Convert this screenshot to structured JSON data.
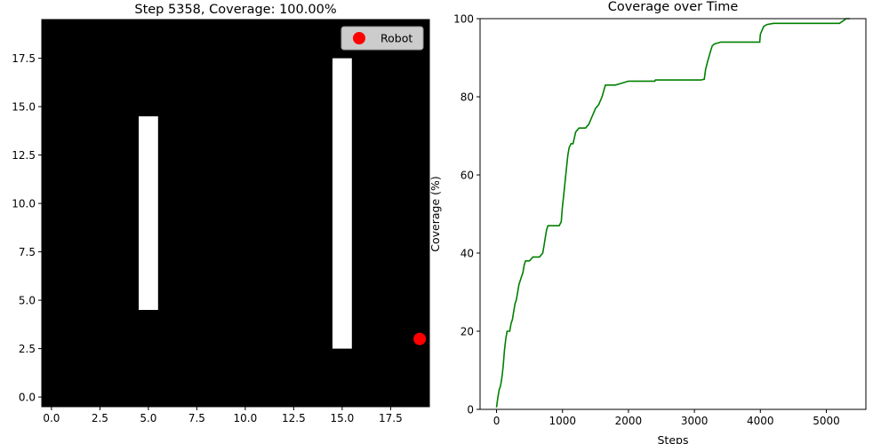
{
  "chart_data": [
    {
      "type": "heatmap",
      "title": "Step 5358, Coverage: 100.00%",
      "xlim": [
        -0.5,
        19.5
      ],
      "ylim": [
        -0.5,
        19.5
      ],
      "xticks": [
        0.0,
        2.5,
        5.0,
        7.5,
        10.0,
        12.5,
        15.0,
        17.5
      ],
      "yticks": [
        0.0,
        2.5,
        5.0,
        7.5,
        10.0,
        12.5,
        15.0,
        17.5
      ],
      "xtick_labels": [
        "0.0",
        "2.5",
        "5.0",
        "7.5",
        "10.0",
        "12.5",
        "15.0",
        "17.5"
      ],
      "ytick_labels": [
        "0.0",
        "2.5",
        "5.0",
        "7.5",
        "10.0",
        "12.5",
        "15.0",
        "17.5"
      ],
      "background_color": "#000000",
      "obstacle_color": "#ffffff",
      "obstacles": [
        {
          "x_range": [
            4.5,
            5.5
          ],
          "y_range": [
            4.5,
            14.5
          ]
        },
        {
          "x_range": [
            14.5,
            15.5
          ],
          "y_range": [
            2.5,
            17.5
          ]
        }
      ],
      "robot": {
        "x": 19,
        "y": 3,
        "color": "#ff0000"
      },
      "legend": {
        "label": "Robot",
        "placement": "top-right"
      }
    },
    {
      "type": "line",
      "title": "Coverage over Time",
      "xlabel": "Steps",
      "ylabel": "Coverage (%)",
      "xlim": [
        -250,
        5600
      ],
      "ylim": [
        0,
        100
      ],
      "xticks": [
        0,
        1000,
        2000,
        3000,
        4000,
        5000
      ],
      "yticks": [
        0,
        20,
        40,
        60,
        80,
        100
      ],
      "xtick_labels": [
        "0",
        "1000",
        "2000",
        "3000",
        "4000",
        "5000"
      ],
      "ytick_labels": [
        "0",
        "20",
        "40",
        "60",
        "80",
        "100"
      ],
      "line_color": "#008000",
      "series": [
        {
          "x": [
            0,
            20,
            40,
            60,
            80,
            100,
            120,
            140,
            160,
            180,
            200,
            220,
            240,
            260,
            280,
            300,
            320,
            340,
            360,
            380,
            400,
            420,
            440,
            460,
            480,
            500,
            550,
            600,
            650,
            700,
            720,
            740,
            760,
            780,
            800,
            850,
            900,
            950,
            980,
            1000,
            1020,
            1050,
            1080,
            1100,
            1130,
            1160,
            1200,
            1250,
            1300,
            1350,
            1400,
            1450,
            1500,
            1550,
            1600,
            1650,
            1680,
            1700,
            1750,
            1800,
            1900,
            2000,
            2050,
            2100,
            2200,
            2300,
            2400,
            2410,
            2500,
            2600,
            2800,
            3000,
            3100,
            3150,
            3170,
            3200,
            3250,
            3270,
            3300,
            3400,
            3500,
            3600,
            3700,
            3800,
            3900,
            3990,
            4000,
            4050,
            4100,
            4200,
            4400,
            4600,
            4800,
            5000,
            5200,
            5260,
            5300,
            5358
          ],
          "values": [
            0.5,
            3,
            5,
            6,
            8,
            11,
            15,
            18,
            20,
            20,
            20,
            22,
            23,
            25,
            27,
            28,
            30,
            32,
            33,
            34,
            35,
            37,
            38,
            38,
            38,
            38,
            39,
            39,
            39,
            40,
            42,
            44,
            46,
            47,
            47,
            47,
            47,
            47,
            48,
            52,
            55,
            60,
            65,
            67,
            68,
            68,
            71,
            72,
            72,
            72,
            73,
            75,
            77,
            78,
            80,
            83,
            83,
            83,
            83,
            83,
            83.5,
            84,
            84,
            84,
            84,
            84,
            84,
            84.3,
            84.3,
            84.3,
            84.3,
            84.3,
            84.3,
            84.5,
            87,
            89,
            92,
            93,
            93.5,
            94,
            94,
            94,
            94,
            94,
            94,
            94,
            96,
            98,
            98.5,
            98.8,
            98.8,
            98.8,
            98.8,
            98.8,
            98.8,
            99.5,
            100,
            100
          ]
        }
      ]
    }
  ]
}
